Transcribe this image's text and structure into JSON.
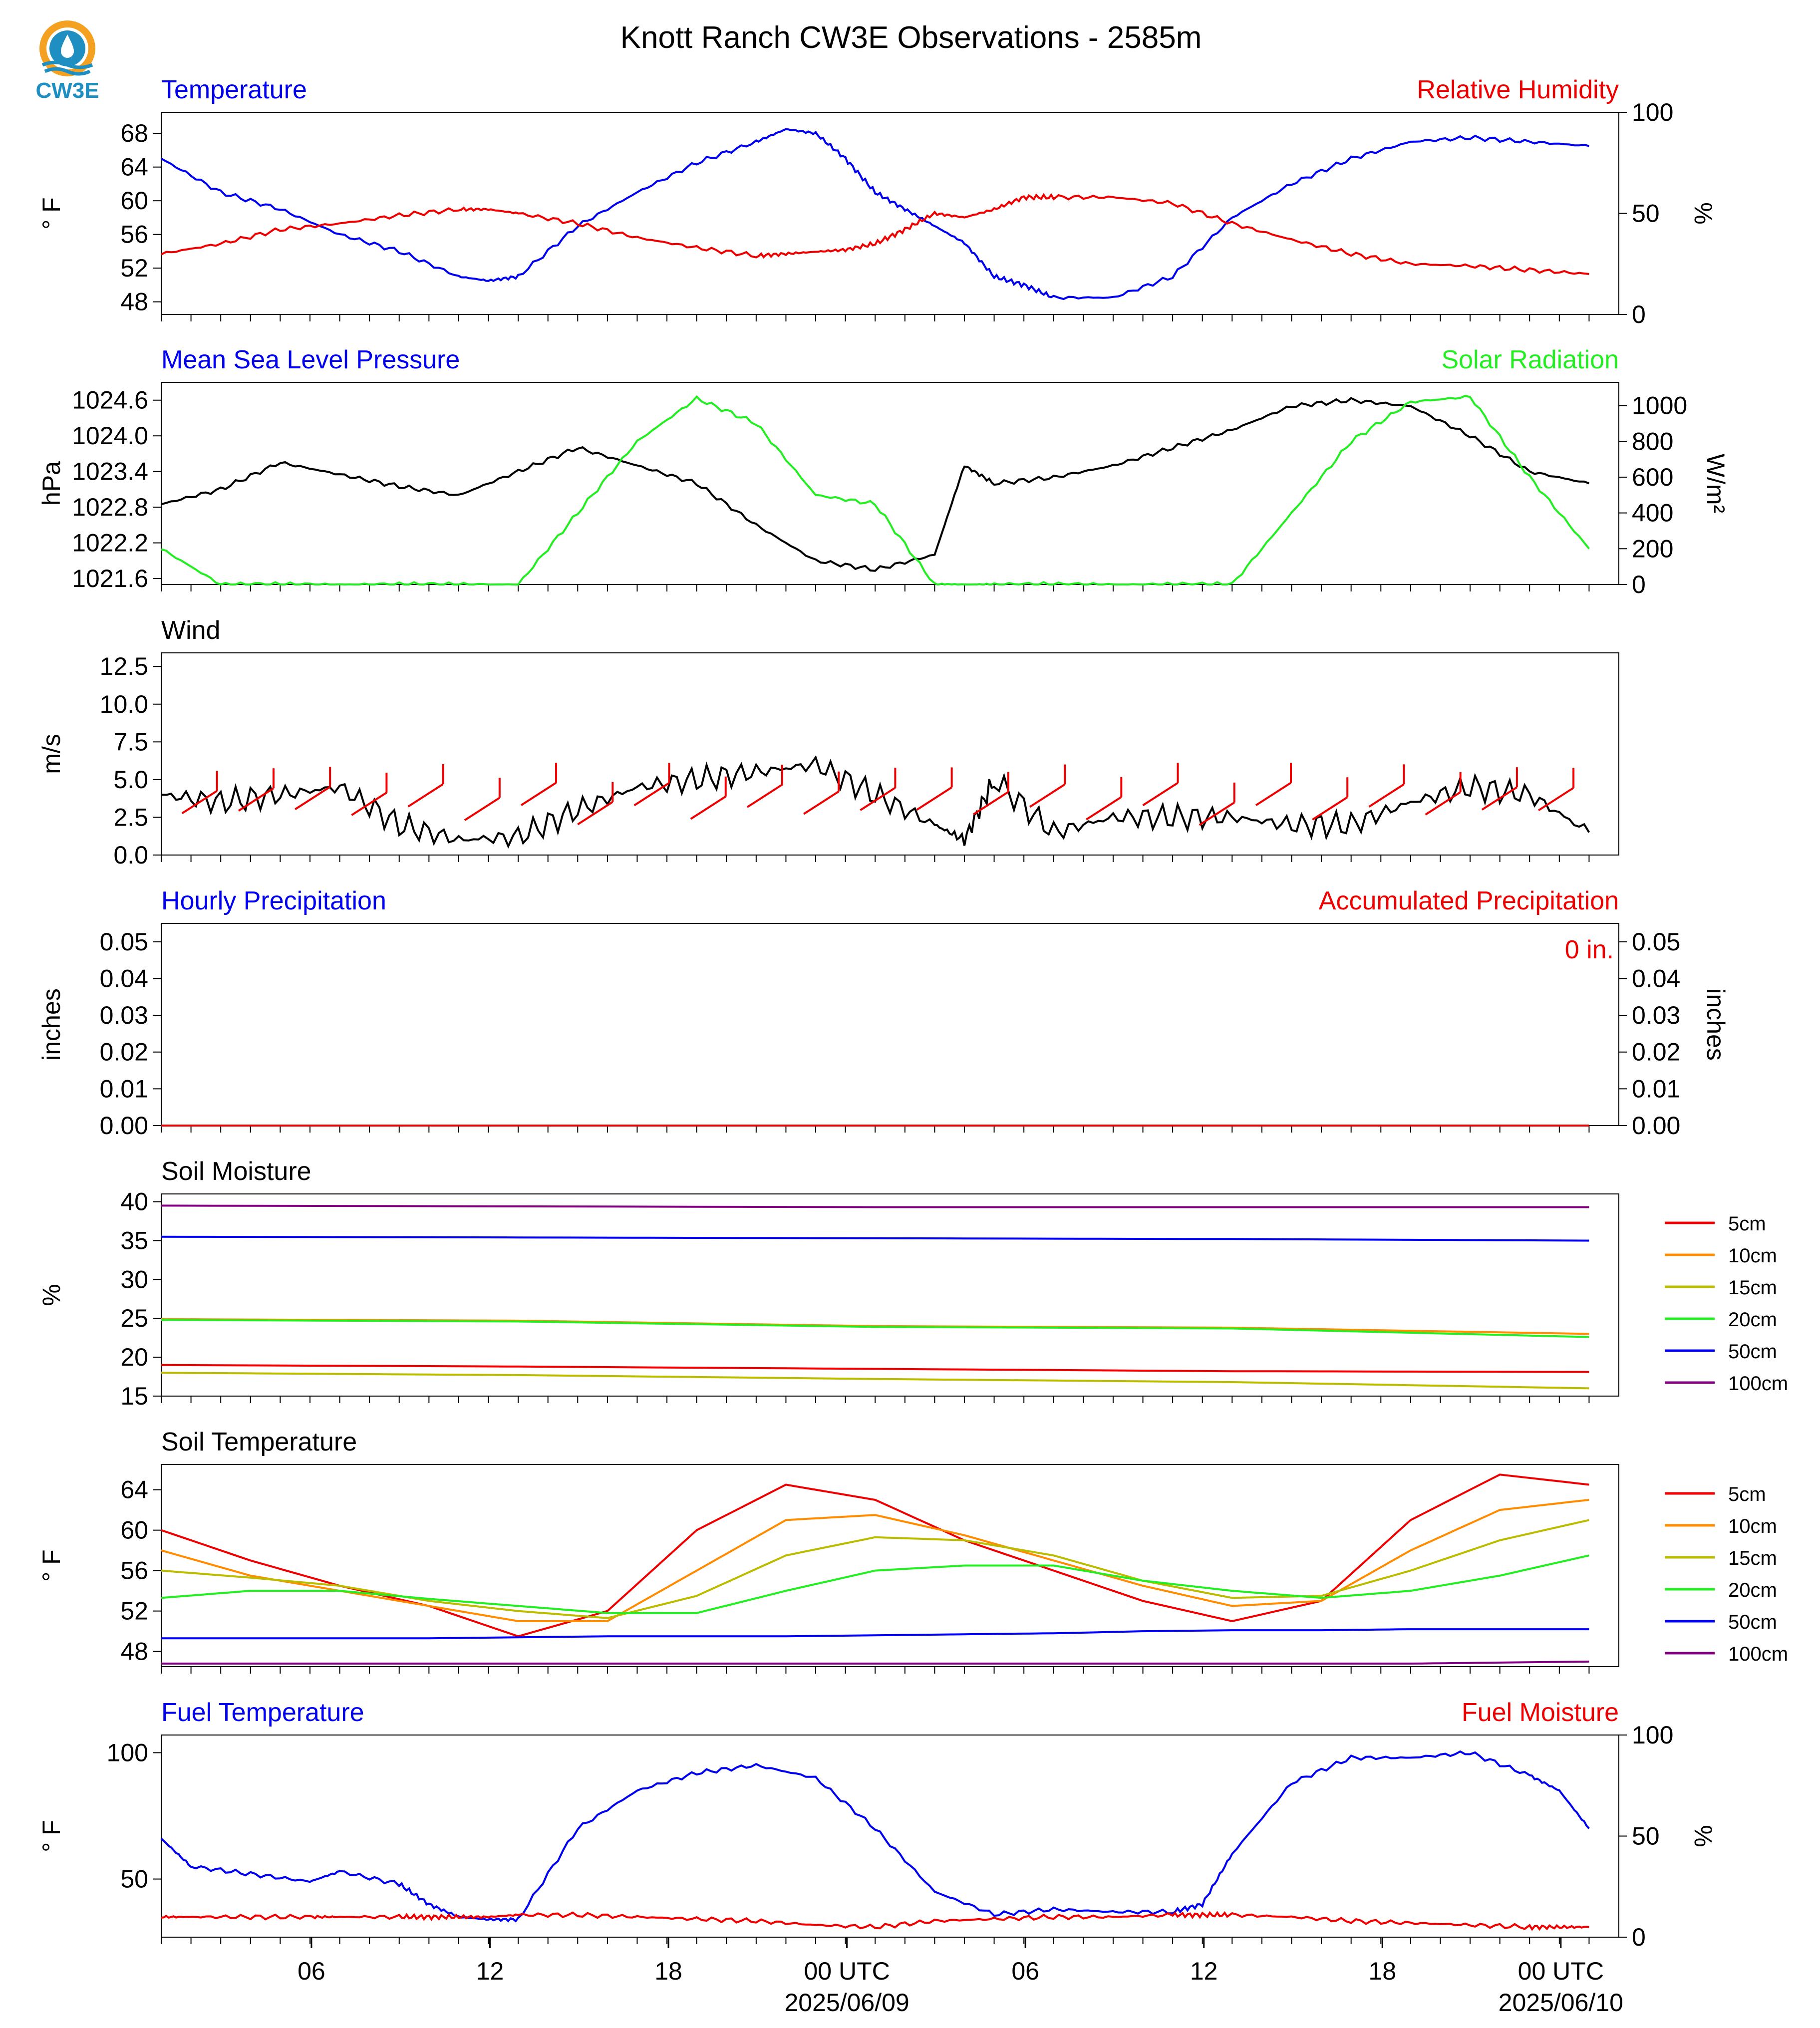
{
  "header": {
    "title": "Knott Ranch CW3E Observations - 2585m",
    "logo_text": "CW3E"
  },
  "colors": {
    "blue": "#0000ee",
    "red": "#ee0000",
    "green": "#22ee22",
    "black": "#000000",
    "orange": "#ff8c00",
    "olive": "#bbbb00",
    "purple": "#800080"
  },
  "x_axis": {
    "ticks": [
      "06",
      "12",
      "18",
      "00 UTC",
      "06",
      "12",
      "18",
      "00 UTC"
    ],
    "dates": [
      "2025/06/09",
      "2025/06/10"
    ]
  },
  "legend": [
    "5cm",
    "10cm",
    "15cm",
    "20cm",
    "50cm",
    "100cm"
  ],
  "chart_data": [
    {
      "type": "line",
      "title": "Temperature",
      "title_right": "Relative Humidity",
      "ylabel": "° F",
      "ylabel_right": "%",
      "ylim": [
        46.5,
        70.5
      ],
      "ylim_right": [
        0,
        100
      ],
      "yticks": [
        "68",
        "64",
        "60",
        "56",
        "52",
        "48"
      ],
      "yticks_right": [
        "100",
        "50",
        "0"
      ],
      "x_hours": [
        0,
        2,
        4,
        6,
        8,
        10,
        11,
        12,
        14,
        16,
        18,
        20,
        21,
        22,
        23,
        24,
        25,
        26,
        27,
        28,
        29,
        30,
        32,
        34,
        36,
        38,
        40,
        42,
        44,
        46,
        48
      ],
      "series": [
        {
          "name": "Temperature",
          "color": "blue",
          "axis": "left",
          "values": [
            65,
            61,
            59,
            56,
            54,
            51,
            50.5,
            51,
            57,
            61,
            64.5,
            67,
            68.5,
            68,
            65,
            61,
            59,
            57,
            55,
            51,
            50,
            48.5,
            48.5,
            51,
            58,
            62,
            65,
            67,
            67.5,
            67,
            66.5
          ]
        },
        {
          "name": "Relative Humidity",
          "color": "red",
          "axis": "right",
          "values": [
            30,
            35,
            42,
            45,
            49,
            52,
            52,
            50,
            45,
            38,
            33,
            29,
            30,
            31,
            32,
            35,
            42,
            50,
            48,
            52,
            58,
            58,
            58,
            55,
            45,
            37,
            30,
            25,
            24,
            22,
            20
          ]
        }
      ]
    },
    {
      "type": "line",
      "title": "Mean Sea Level Pressure",
      "title_right": "Solar Radiation",
      "ylabel": "hPa",
      "ylabel_right": "W/m²",
      "ylim": [
        1021.5,
        1024.9
      ],
      "ylim_right": [
        0,
        1130
      ],
      "yticks": [
        "1024.6",
        "1024.0",
        "1023.4",
        "1022.8",
        "1022.2",
        "1021.6"
      ],
      "yticks_right": [
        "1000",
        "800",
        "600",
        "400",
        "200",
        "0"
      ],
      "x_hours": [
        0,
        2,
        4,
        6,
        8,
        10,
        12,
        14,
        16,
        18,
        20,
        22,
        24,
        26,
        27,
        28,
        30,
        32,
        34,
        36,
        38,
        40,
        42,
        44,
        46,
        48
      ],
      "series": [
        {
          "name": "Mean Sea Level Pressure",
          "color": "black",
          "axis": "left",
          "values": [
            1022.85,
            1023.1,
            1023.55,
            1023.35,
            1023.15,
            1023.0,
            1023.4,
            1023.8,
            1023.5,
            1023.2,
            1022.5,
            1021.9,
            1021.75,
            1022.0,
            1023.5,
            1023.2,
            1023.3,
            1023.5,
            1023.8,
            1024.1,
            1024.5,
            1024.6,
            1024.5,
            1024.0,
            1023.4,
            1023.2
          ]
        },
        {
          "name": "Solar Radiation",
          "color": "green",
          "axis": "right",
          "values": [
            200,
            0,
            0,
            0,
            0,
            0,
            0,
            400,
            800,
            1040,
            900,
            500,
            450,
            0,
            0,
            0,
            0,
            0,
            0,
            0,
            400,
            800,
            1020,
            1050,
            600,
            200
          ]
        }
      ]
    },
    {
      "type": "line",
      "title": "Wind",
      "ylabel": "m/s",
      "ylim": [
        0,
        13.4
      ],
      "yticks": [
        "12.5",
        "10.0",
        "7.5",
        "5.0",
        "2.5",
        "0.0"
      ],
      "x_hours": [
        0,
        2,
        4,
        6,
        8,
        10,
        12,
        14,
        16,
        18,
        20,
        22,
        24,
        26,
        27,
        28,
        30,
        32,
        34,
        36,
        38,
        40,
        42,
        44,
        46,
        48
      ],
      "series": [
        {
          "name": "Wind Speed",
          "color": "black",
          "axis": "left",
          "values": [
            4,
            3.5,
            4,
            4.5,
            2,
            1,
            1.2,
            3,
            4.5,
            5,
            5.5,
            6,
            4,
            2,
            1,
            5,
            1.5,
            2.5,
            2.5,
            2.5,
            2,
            2,
            3.5,
            4.5,
            4,
            1.5
          ]
        }
      ]
    },
    {
      "type": "line",
      "title": "Hourly Precipitation",
      "title_right": "Accumulated Precipitation",
      "annotation": "0 in.",
      "ylabel": "inches",
      "ylabel_right": "inches",
      "ylim": [
        0,
        0.055
      ],
      "ylim_right": [
        0,
        0.055
      ],
      "yticks": [
        "0.05",
        "0.04",
        "0.03",
        "0.02",
        "0.01",
        "0.00"
      ],
      "yticks_right": [
        "0.05",
        "0.04",
        "0.03",
        "0.02",
        "0.01",
        "0.00"
      ],
      "x_hours": [
        0,
        48
      ],
      "series": [
        {
          "name": "Accumulated Precipitation",
          "color": "red",
          "axis": "left",
          "values": [
            0,
            0
          ]
        }
      ]
    },
    {
      "type": "line",
      "title": "Soil Moisture",
      "ylabel": "%",
      "ylim": [
        15,
        41
      ],
      "yticks": [
        "40",
        "35",
        "30",
        "25",
        "20",
        "15"
      ],
      "x_hours": [
        0,
        12,
        24,
        36,
        48
      ],
      "series": [
        {
          "name": "5cm",
          "color": "red",
          "values": [
            19,
            18.8,
            18.5,
            18.2,
            18.1
          ]
        },
        {
          "name": "10cm",
          "color": "orange",
          "values": [
            24.9,
            24.7,
            24,
            23.8,
            23
          ]
        },
        {
          "name": "15cm",
          "color": "olive",
          "values": [
            18,
            17.7,
            17.2,
            16.8,
            16
          ]
        },
        {
          "name": "20cm",
          "color": "green",
          "values": [
            24.8,
            24.6,
            23.9,
            23.7,
            22.6
          ]
        },
        {
          "name": "50cm",
          "color": "blue",
          "values": [
            35.5,
            35.4,
            35.3,
            35.2,
            35
          ]
        },
        {
          "name": "100cm",
          "color": "purple",
          "values": [
            39.5,
            39.4,
            39.3,
            39.3,
            39.3
          ]
        }
      ]
    },
    {
      "type": "line",
      "title": "Soil Temperature",
      "ylabel": "° F",
      "ylim": [
        46.5,
        66.5
      ],
      "yticks": [
        "64",
        "60",
        "56",
        "52",
        "48"
      ],
      "x_hours": [
        0,
        3,
        6,
        9,
        12,
        15,
        18,
        21,
        24,
        27,
        30,
        33,
        36,
        39,
        42,
        45,
        48
      ],
      "series": [
        {
          "name": "5cm",
          "color": "red",
          "values": [
            60,
            57,
            54.5,
            52.5,
            49.5,
            52,
            60,
            64.5,
            63,
            59,
            56,
            53,
            51,
            53,
            61,
            65.5,
            64.5
          ]
        },
        {
          "name": "10cm",
          "color": "orange",
          "values": [
            58,
            55.5,
            54,
            52.5,
            51,
            51,
            56,
            61,
            61.5,
            59.5,
            57,
            54.5,
            52.5,
            53,
            58,
            62,
            63
          ]
        },
        {
          "name": "15cm",
          "color": "olive",
          "values": [
            56,
            55.3,
            54.5,
            53,
            52,
            51.3,
            53.5,
            57.5,
            59.3,
            59,
            57.5,
            55,
            53.3,
            53.5,
            56,
            59,
            61
          ]
        },
        {
          "name": "20cm",
          "color": "green",
          "values": [
            53.3,
            54,
            54,
            53.2,
            52.5,
            51.8,
            51.8,
            54,
            56,
            56.5,
            56.5,
            55,
            54,
            53.3,
            54,
            55.5,
            57.5
          ]
        },
        {
          "name": "50cm",
          "color": "blue",
          "values": [
            49.3,
            49.3,
            49.3,
            49.3,
            49.4,
            49.5,
            49.5,
            49.5,
            49.6,
            49.7,
            49.8,
            50,
            50.1,
            50.1,
            50.2,
            50.2,
            50.2
          ]
        },
        {
          "name": "100cm",
          "color": "purple",
          "values": [
            46.8,
            46.8,
            46.8,
            46.8,
            46.8,
            46.8,
            46.8,
            46.8,
            46.8,
            46.8,
            46.8,
            46.8,
            46.8,
            46.8,
            46.8,
            46.9,
            47
          ]
        }
      ]
    },
    {
      "type": "line",
      "title": "Fuel Temperature",
      "title_right": "Fuel Moisture",
      "ylabel": "° F",
      "ylabel_right": "%",
      "ylim": [
        27,
        107
      ],
      "ylim_right": [
        0,
        100
      ],
      "yticks": [
        "100",
        "50"
      ],
      "yticks_right": [
        "100",
        "50",
        "0"
      ],
      "x_hours": [
        0,
        1,
        3,
        5,
        6,
        8,
        9,
        10,
        11,
        12,
        14,
        16,
        18,
        20,
        22,
        24,
        26,
        28,
        30,
        32,
        34,
        35,
        36,
        38,
        40,
        42,
        44,
        46,
        47,
        48
      ],
      "series": [
        {
          "name": "Fuel Temperature",
          "color": "blue",
          "axis": "left",
          "values": [
            66,
            55,
            52,
            49,
            53,
            48,
            40,
            35,
            34,
            34,
            70,
            85,
            92,
            95,
            90,
            70,
            45,
            36,
            38,
            37,
            37,
            40,
            60,
            88,
            98,
            98,
            100,
            91,
            85,
            70
          ]
        },
        {
          "name": "Fuel Moisture",
          "color": "red",
          "axis": "right",
          "values": [
            10,
            10,
            10,
            10,
            10,
            10,
            10,
            10,
            10,
            11,
            11,
            10,
            9,
            8,
            6,
            5,
            8,
            9,
            10,
            10,
            11,
            11,
            11,
            10,
            8,
            7,
            6,
            5,
            5,
            5
          ]
        }
      ]
    }
  ]
}
